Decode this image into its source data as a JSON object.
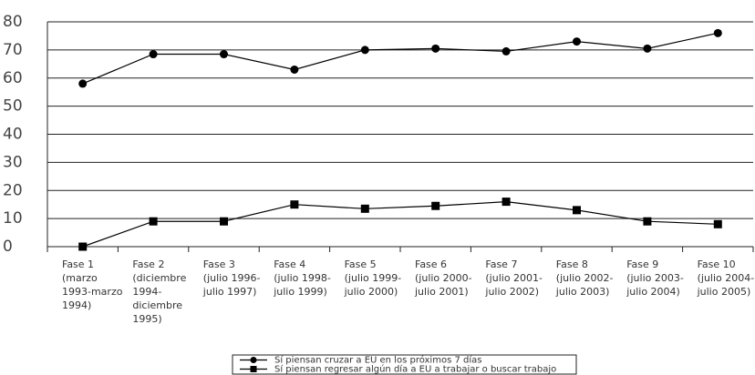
{
  "chart_data": {
    "type": "line",
    "categories": [
      [
        "Fase 1",
        "(marzo",
        "1993-marzo",
        "1994)"
      ],
      [
        "Fase 2",
        "(diciembre",
        "1994-",
        "diciembre",
        "1995)"
      ],
      [
        "Fase 3",
        "(julio 1996-",
        "julio 1997)"
      ],
      [
        "Fase 4",
        "(julio 1998-",
        "julio 1999)"
      ],
      [
        "Fase 5",
        "(julio 1999-",
        "julio 2000)"
      ],
      [
        "Fase 6",
        "(julio 2000-",
        "julio 2001)"
      ],
      [
        "Fase 7",
        "(julio 2001-",
        "julio 2002)"
      ],
      [
        "Fase 8",
        "(julio 2002-",
        "julio 2003)"
      ],
      [
        "Fase 9",
        "(julio 2003-",
        "julio 2004)"
      ],
      [
        "Fase 10",
        "(julio 2004-",
        "julio 2005)"
      ]
    ],
    "series": [
      {
        "name": "Sí piensan cruzar a EU en los próximos 7 días",
        "color": "#000000",
        "marker": "circle",
        "values": [
          58,
          68.5,
          68.5,
          63,
          70,
          70.5,
          69.5,
          73,
          70.5,
          76
        ]
      },
      {
        "name": "Sí piensan regresar algún día a EU a trabajar o buscar trabajo",
        "color": "#000000",
        "marker": "square",
        "values": [
          0,
          9,
          9,
          15,
          13.5,
          14.5,
          16,
          13,
          9,
          8
        ]
      }
    ],
    "ylim": [
      0,
      80
    ],
    "yticks": [
      0,
      10,
      20,
      30,
      40,
      50,
      60,
      70,
      80
    ],
    "grid": true
  }
}
